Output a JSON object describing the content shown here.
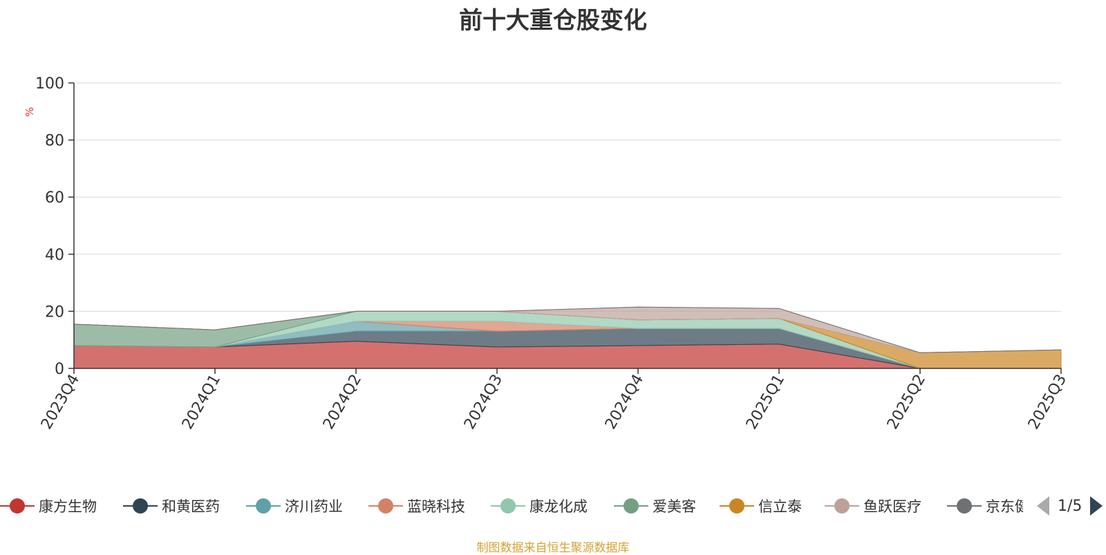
{
  "chart_data": {
    "type": "area",
    "stacked": true,
    "title": "前十大重仓股变化",
    "ylabel": "%",
    "ylim": [
      0,
      100
    ],
    "yticks": [
      0,
      20,
      40,
      60,
      80,
      100
    ],
    "grid": true,
    "legend_position": "bottom",
    "categories": [
      "2023Q4",
      "2024Q1",
      "2024Q2",
      "2024Q3",
      "2024Q4",
      "2025Q1",
      "2025Q2",
      "2025Q3"
    ],
    "series": [
      {
        "name": "康方生物",
        "color": "#c23531",
        "values": [
          8,
          7.5,
          9.5,
          7.5,
          8,
          8.5,
          0,
          0
        ]
      },
      {
        "name": "和黄医药",
        "color": "#2f4554",
        "values": [
          0,
          0,
          3.5,
          5.5,
          6,
          5.5,
          0,
          0
        ]
      },
      {
        "name": "济川药业",
        "color": "#61a0a8",
        "values": [
          0,
          0,
          3.5,
          0,
          0,
          0,
          0,
          0
        ]
      },
      {
        "name": "蓝晓科技",
        "color": "#d48265",
        "values": [
          0,
          0,
          0,
          3.5,
          0,
          0,
          0,
          0
        ]
      },
      {
        "name": "康龙化成",
        "color": "#91c7ae",
        "values": [
          0,
          0,
          3.5,
          3.5,
          3,
          3.5,
          0,
          0
        ]
      },
      {
        "name": "爱美客",
        "color": "#749f83",
        "values": [
          7.5,
          6,
          0,
          0,
          0,
          0,
          0,
          0
        ]
      },
      {
        "name": "信立泰",
        "color": "#ca8622",
        "values": [
          0,
          0,
          0,
          0,
          0,
          0,
          5.5,
          6.5
        ]
      },
      {
        "name": "鱼跃医疗",
        "color": "#bda29a",
        "values": [
          0,
          0,
          0,
          0,
          4.5,
          3.5,
          0,
          0
        ]
      },
      {
        "name": "京东健康",
        "color": "#6e7074",
        "values": [
          0,
          0,
          0,
          0,
          0,
          0,
          0,
          0
        ]
      }
    ],
    "legend_visible": [
      "康方生物",
      "和黄医药",
      "济川药业",
      "蓝晓科技",
      "康龙化成",
      "爱美客",
      "信立泰",
      "鱼跃医疗",
      "京东健康"
    ],
    "legend_page": "1/5"
  },
  "source_note": "制图数据来自恒生聚源数据库"
}
